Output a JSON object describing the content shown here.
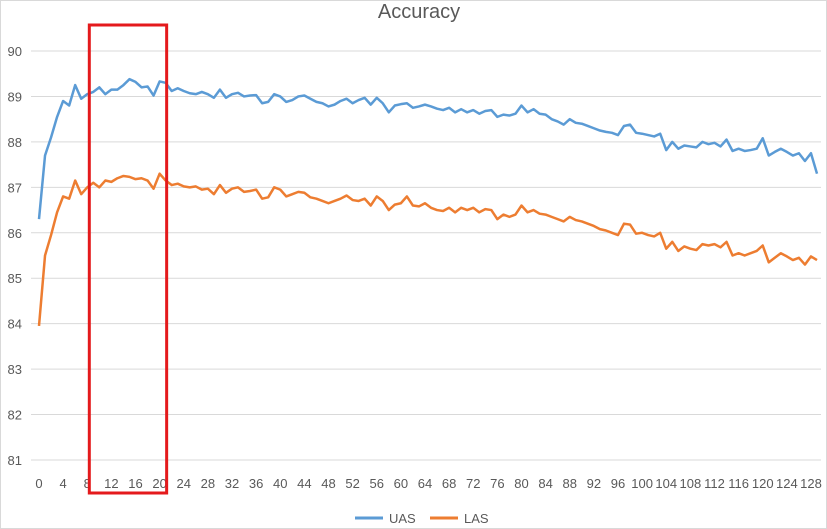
{
  "chart_data": {
    "type": "line",
    "title": "Accuracy",
    "xlabel": "",
    "ylabel": "",
    "ylim": [
      81,
      90
    ],
    "y_ticks": [
      81,
      82,
      83,
      84,
      85,
      86,
      87,
      88,
      89,
      90
    ],
    "x_start": 0,
    "x_step": 1,
    "x_tick_labels": [
      "0",
      "4",
      "8",
      "12",
      "16",
      "20",
      "24",
      "28",
      "32",
      "36",
      "40",
      "44",
      "48",
      "52",
      "56",
      "60",
      "64",
      "68",
      "72",
      "76",
      "80",
      "84",
      "88",
      "92",
      "96",
      "100",
      "104",
      "108",
      "112",
      "116",
      "120",
      "124",
      "128"
    ],
    "grid": "horizontal",
    "legend_position": "bottom",
    "highlight": {
      "x_from": 10,
      "x_to": 21,
      "color": "#e41a1c"
    },
    "series": [
      {
        "name": "UAS",
        "color": "#5b9bd5",
        "values": [
          86.3,
          87.7,
          88.1,
          88.55,
          88.9,
          88.8,
          89.25,
          88.95,
          89.05,
          89.1,
          89.2,
          89.05,
          89.15,
          89.15,
          89.25,
          89.38,
          89.32,
          89.2,
          89.22,
          89.02,
          89.33,
          89.3,
          89.12,
          89.18,
          89.12,
          89.07,
          89.05,
          89.1,
          89.05,
          88.97,
          89.15,
          88.97,
          89.05,
          89.08,
          89.0,
          89.02,
          89.03,
          88.85,
          88.88,
          89.05,
          89.0,
          88.88,
          88.92,
          89.0,
          89.02,
          88.95,
          88.88,
          88.85,
          88.78,
          88.82,
          88.9,
          88.95,
          88.85,
          88.92,
          88.97,
          88.82,
          88.97,
          88.85,
          88.65,
          88.8,
          88.83,
          88.85,
          88.75,
          88.78,
          88.82,
          88.78,
          88.73,
          88.7,
          88.75,
          88.65,
          88.72,
          88.65,
          88.7,
          88.62,
          88.68,
          88.7,
          88.55,
          88.6,
          88.58,
          88.62,
          88.8,
          88.65,
          88.72,
          88.62,
          88.6,
          88.5,
          88.45,
          88.38,
          88.5,
          88.42,
          88.4,
          88.35,
          88.3,
          88.25,
          88.22,
          88.2,
          88.15,
          88.35,
          88.38,
          88.2,
          88.18,
          88.15,
          88.12,
          88.18,
          87.82,
          88.0,
          87.85,
          87.92,
          87.9,
          87.88,
          88.0,
          87.95,
          87.98,
          87.9,
          88.05,
          87.8,
          87.85,
          87.8,
          87.82,
          87.85,
          88.08,
          87.7,
          87.78,
          87.85,
          87.78,
          87.7,
          87.75,
          87.58,
          87.75,
          87.3
        ]
      },
      {
        "name": "LAS",
        "color": "#ed7d31",
        "values": [
          83.95,
          85.5,
          85.95,
          86.45,
          86.8,
          86.75,
          87.15,
          86.85,
          87.0,
          87.1,
          87.0,
          87.15,
          87.12,
          87.2,
          87.25,
          87.23,
          87.18,
          87.2,
          87.15,
          86.97,
          87.3,
          87.15,
          87.05,
          87.08,
          87.02,
          87.0,
          87.02,
          86.95,
          86.97,
          86.85,
          87.05,
          86.88,
          86.97,
          87.0,
          86.9,
          86.92,
          86.95,
          86.75,
          86.78,
          87.0,
          86.95,
          86.8,
          86.85,
          86.9,
          86.88,
          86.78,
          86.75,
          86.7,
          86.65,
          86.7,
          86.75,
          86.82,
          86.72,
          86.7,
          86.75,
          86.6,
          86.8,
          86.7,
          86.5,
          86.62,
          86.65,
          86.8,
          86.6,
          86.58,
          86.65,
          86.55,
          86.5,
          86.48,
          86.55,
          86.45,
          86.55,
          86.5,
          86.55,
          86.45,
          86.52,
          86.5,
          86.3,
          86.4,
          86.35,
          86.4,
          86.6,
          86.45,
          86.5,
          86.42,
          86.4,
          86.35,
          86.3,
          86.25,
          86.35,
          86.28,
          86.25,
          86.2,
          86.15,
          86.08,
          86.05,
          86.0,
          85.95,
          86.2,
          86.18,
          85.98,
          86.0,
          85.95,
          85.92,
          86.0,
          85.65,
          85.8,
          85.6,
          85.7,
          85.65,
          85.62,
          85.75,
          85.72,
          85.75,
          85.68,
          85.8,
          85.5,
          85.55,
          85.5,
          85.55,
          85.6,
          85.72,
          85.35,
          85.45,
          85.55,
          85.48,
          85.4,
          85.45,
          85.3,
          85.48,
          85.4
        ]
      }
    ]
  }
}
